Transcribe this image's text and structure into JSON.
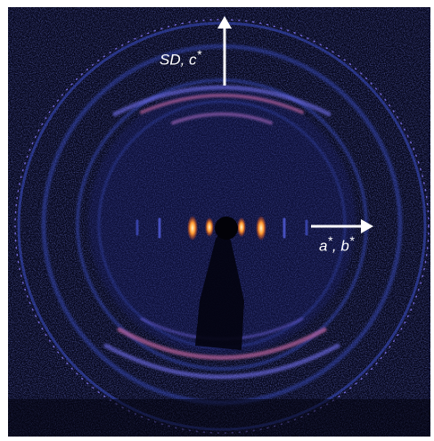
{
  "image": {
    "description_kind": "x-ray diffraction pattern",
    "colors": {
      "background": "#05061a",
      "ring": "#3a4fc8",
      "ring_bright": "#7a78ff",
      "arc_hot": "#c86aa8",
      "reflection_core": "#fff3c0",
      "reflection_glow": "#ff7a2a",
      "arrow": "#ffffff"
    }
  },
  "annotations": {
    "vertical_arrow": {
      "label_main": "SD, c",
      "label_sup": "*"
    },
    "horizontal_arrow": {
      "label_main": "a",
      "label_sup1": "*",
      "label_mid": ", b",
      "label_sup2": "*"
    }
  }
}
